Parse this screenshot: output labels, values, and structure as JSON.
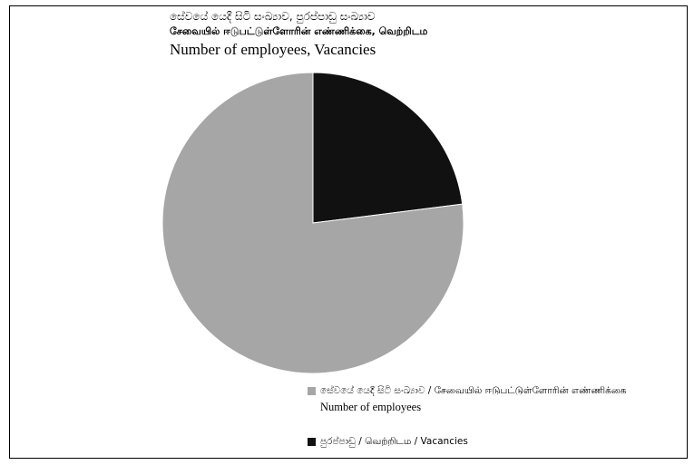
{
  "chart_data": {
    "type": "pie",
    "title_lines": [
      "සේවයේ යෙදී සිටි සංඛ්‍යාව, පුරප්පාඩු සංඛ්‍යාව",
      "சேவையில் ஈடுபட்டுள்ளோரின் எண்ணிக்கை, வெற்றிடம",
      "Number of employees, Vacancies"
    ],
    "categories": [
      "සේවයේ යෙදී සිටි සංඛ්‍යාව / சேவையில் ஈடுபட்டுள்ளோரின் எண்ணிக்கை / Number of employees",
      "පුරප්පාඩු / வெற்றிடம / Vacancies"
    ],
    "values": [
      77,
      23
    ],
    "colors": [
      "#a6a6a6",
      "#111111"
    ],
    "legend_placement": "bottom-right",
    "start_angle_deg": 0,
    "direction": "clockwise-from-top, second slice first"
  },
  "legend": {
    "item1_line1": "සේවයේ යෙදී සිටි සංඛ්‍යාව / சேவையில் ஈடுபட்டுள்ளோரின் எண்ணிக்கை",
    "item1_line2": "Number of employees",
    "item2_line1": "පුරප්පාඩු / வெற்றிடம / Vacancies"
  }
}
